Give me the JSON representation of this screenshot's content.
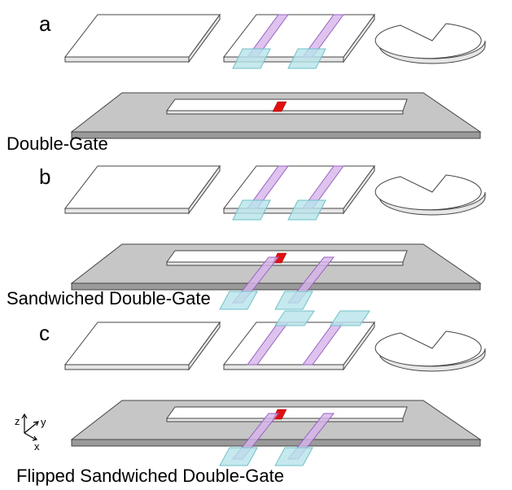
{
  "panels": [
    {
      "letter": "a",
      "caption": "Double-Gate"
    },
    {
      "letter": "b",
      "caption": "Sandwiched Double-Gate"
    },
    {
      "letter": "c",
      "caption": "Flipped Sandwiched Double-Gate"
    }
  ],
  "axes": {
    "z": "z",
    "y": "y",
    "x": "x"
  }
}
